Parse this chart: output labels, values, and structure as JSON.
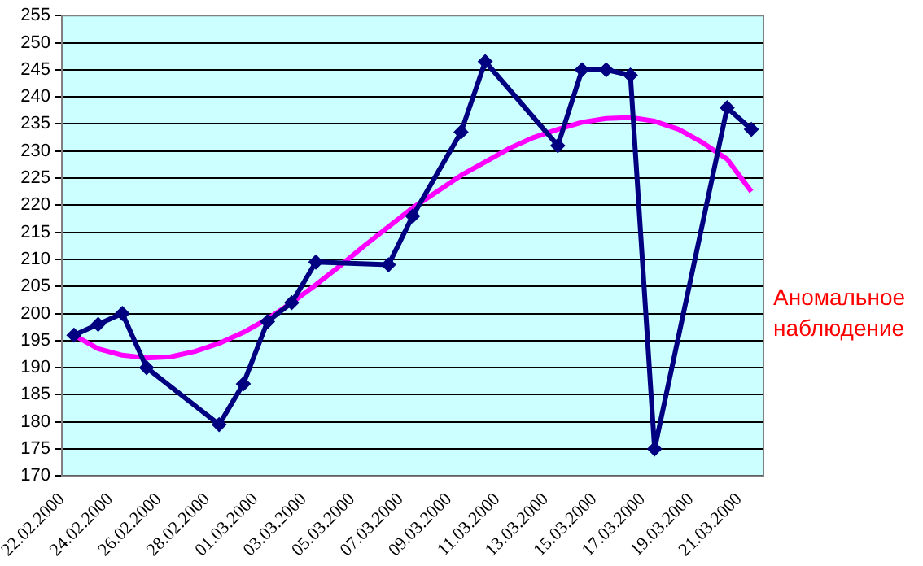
{
  "chart_data": {
    "type": "line",
    "x": [
      "2000-02-22T12:00",
      "2000-02-23T12:00",
      "2000-02-24T12:00",
      "2000-02-25T12:00",
      "2000-02-28T12:00",
      "2000-02-29T12:00",
      "2000-03-01T12:00",
      "2000-03-02T12:00",
      "2000-03-03T12:00",
      "2000-03-06T12:00",
      "2000-03-07T12:00",
      "2000-03-09T12:00",
      "2000-03-10T12:00",
      "2000-03-13T12:00",
      "2000-03-14T12:00",
      "2000-03-15T12:00",
      "2000-03-16T12:00",
      "2000-03-17T12:00",
      "2000-03-20T12:00",
      "2000-03-21T12:00"
    ],
    "series": [
      {
        "color": "#000080",
        "values": [
          196,
          198,
          200,
          190,
          179.5,
          187,
          198.5,
          202,
          209.5,
          209,
          218,
          233.5,
          246.5,
          231,
          245,
          245,
          244,
          175,
          238,
          234
        ]
      },
      {
        "type": "line",
        "color": "#ff00ff",
        "marker": "none",
        "x": [
          "2000-02-22T12:00",
          "2000-02-23T12:00",
          "2000-02-24T12:00",
          "2000-02-25T12:00",
          "2000-02-26T12:00",
          "2000-02-27T12:00",
          "2000-02-28T12:00",
          "2000-02-29T12:00",
          "2000-03-01T12:00",
          "2000-03-02T12:00",
          "2000-03-03T12:00",
          "2000-03-04T12:00",
          "2000-03-05T12:00",
          "2000-03-06T12:00",
          "2000-03-07T12:00",
          "2000-03-08T12:00",
          "2000-03-09T12:00",
          "2000-03-10T12:00",
          "2000-03-11T12:00",
          "2000-03-12T12:00",
          "2000-03-13T12:00",
          "2000-03-14T12:00",
          "2000-03-15T12:00",
          "2000-03-16T12:00",
          "2000-03-17T12:00",
          "2000-03-18T12:00",
          "2000-03-19T12:00",
          "2000-03-20T12:00",
          "2000-03-21T12:00"
        ],
        "values": [
          196,
          193.5,
          192.3,
          191.8,
          192,
          193,
          194.5,
          196.5,
          199,
          202,
          205.3,
          208.8,
          212.5,
          216,
          219.5,
          222.5,
          225.5,
          228,
          230.5,
          232.5,
          234,
          235.3,
          236,
          236.2,
          235.5,
          234,
          231.5,
          228.5,
          222.5
        ]
      }
    ],
    "marker": "diamond",
    "xlim": [
      "2000-02-22",
      "2000-03-22"
    ],
    "xticks": [
      {
        "value": "2000-02-22",
        "label": "22.02.2000"
      },
      {
        "value": "2000-02-24",
        "label": "24.02.2000"
      },
      {
        "value": "2000-02-26",
        "label": "26.02.2000"
      },
      {
        "value": "2000-02-28",
        "label": "28.02.2000"
      },
      {
        "value": "2000-03-01",
        "label": "01.03.2000"
      },
      {
        "value": "2000-03-03",
        "label": "03.03.2000"
      },
      {
        "value": "2000-03-05",
        "label": "05.03.2000"
      },
      {
        "value": "2000-03-07",
        "label": "07.03.2000"
      },
      {
        "value": "2000-03-09",
        "label": "09.03.2000"
      },
      {
        "value": "2000-03-11",
        "label": "11.03.2000"
      },
      {
        "value": "2000-03-13",
        "label": "13.03.2000"
      },
      {
        "value": "2000-03-15",
        "label": "15.03.2000"
      },
      {
        "value": "2000-03-17",
        "label": "17.03.2000"
      },
      {
        "value": "2000-03-19",
        "label": "19.03.2000"
      },
      {
        "value": "2000-03-21",
        "label": "21.03.2000"
      }
    ],
    "ylim": [
      170,
      255
    ],
    "yticks": [
      170,
      175,
      180,
      185,
      190,
      195,
      200,
      205,
      210,
      215,
      220,
      225,
      230,
      235,
      240,
      245,
      250,
      255
    ],
    "grid": "y",
    "legend": false,
    "annotations": [
      "Аномальное наблюдение"
    ]
  }
}
